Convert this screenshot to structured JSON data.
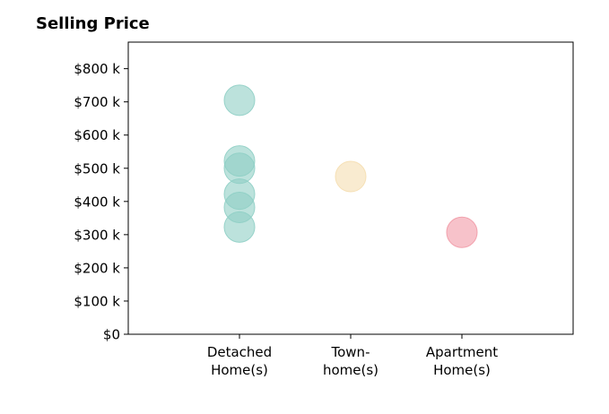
{
  "chart_data": {
    "type": "scatter",
    "title": "Selling Price",
    "xlabel": "",
    "ylabel": "",
    "categories": [
      "Detached\nHome(s)",
      "Town-\nhome(s)",
      "Apartment\nHome(s)"
    ],
    "ylim": [
      0,
      880000
    ],
    "yticks": [
      0,
      100000,
      200000,
      300000,
      400000,
      500000,
      600000,
      700000,
      800000
    ],
    "ytick_labels": [
      "$0",
      "$100 k",
      "$200 k",
      "$300 k",
      "$400 k",
      "$500 k",
      "$600 k",
      "$700 k",
      "$800 k"
    ],
    "grid": false,
    "series": [
      {
        "category": "Detached\nHome(s)",
        "color": "#8fcfc5",
        "values": [
          705000,
          522000,
          500000,
          422000,
          382000,
          323000
        ]
      },
      {
        "category": "Town-\nhome(s)",
        "color": "#f5deb0",
        "values": [
          475000
        ]
      },
      {
        "category": "Apartment\nHome(s)",
        "color": "#f19aa6",
        "values": [
          307000
        ]
      }
    ]
  }
}
